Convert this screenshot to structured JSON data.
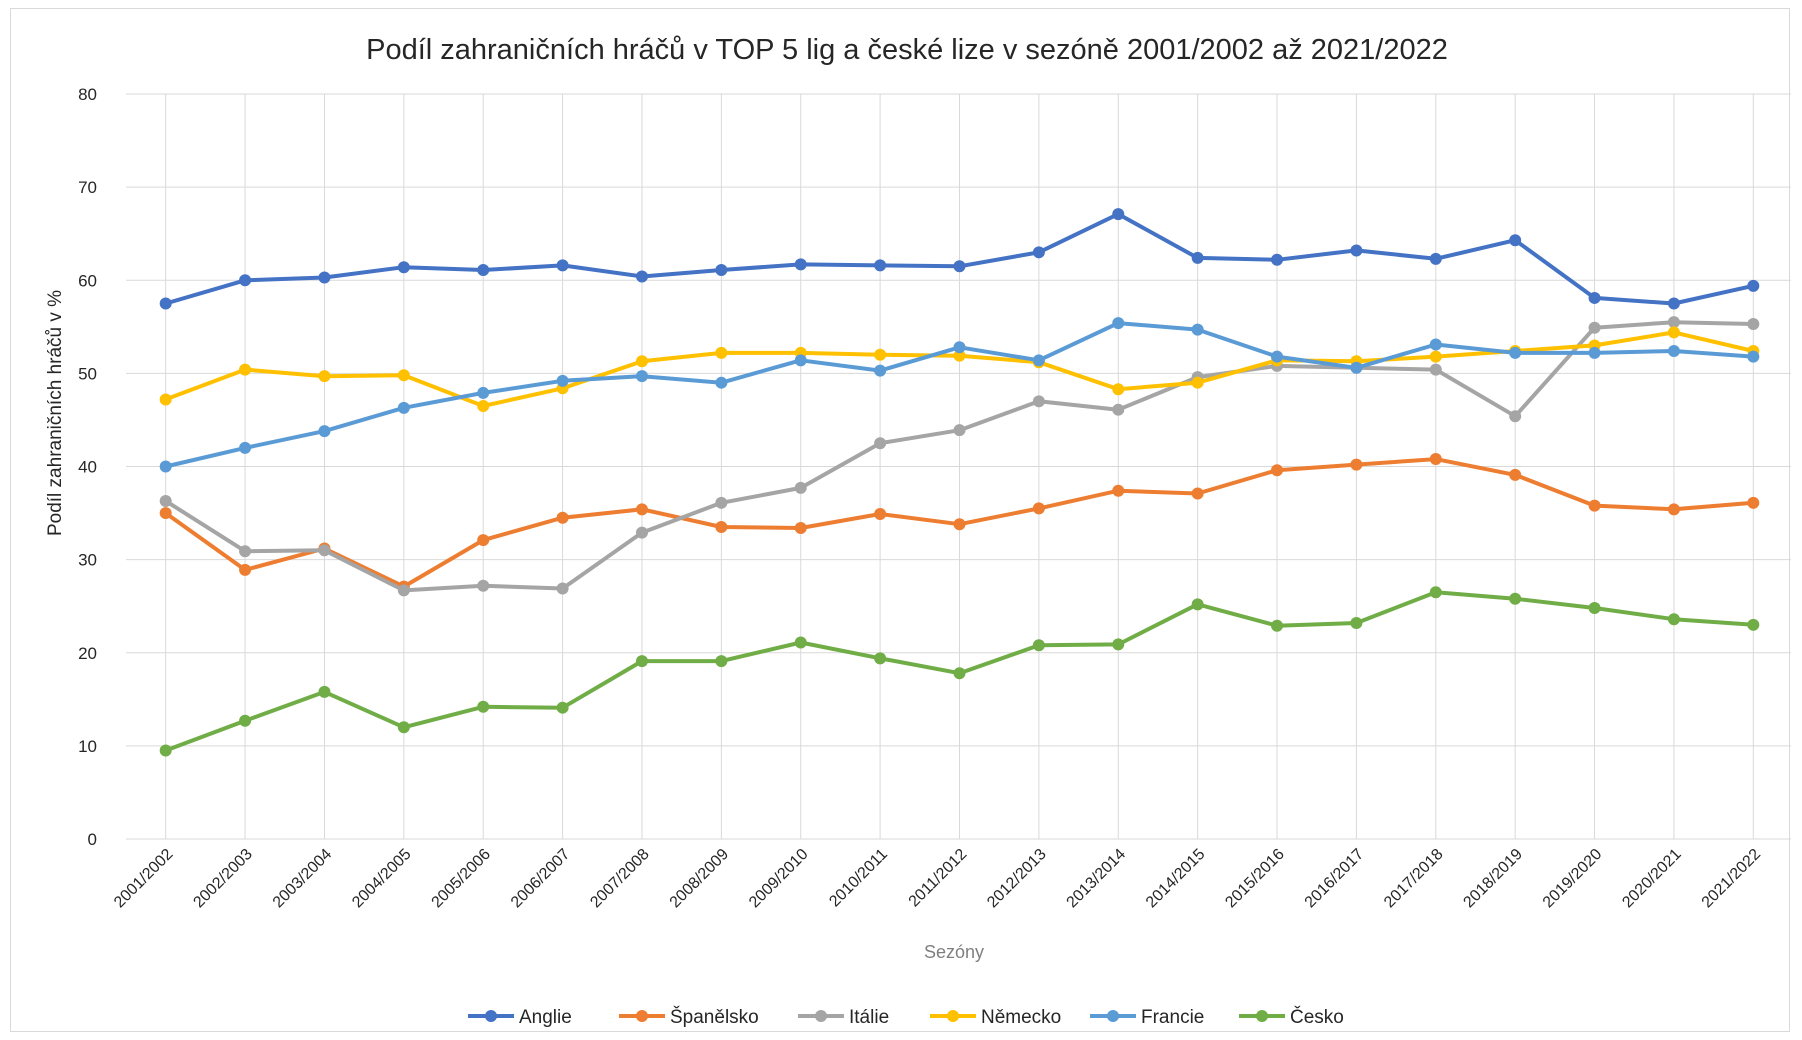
{
  "chart_data": {
    "type": "line",
    "title": "Podíl zahraničních hráčů v TOP 5 lig a české lize v sezóně 2001/2002 až 2021/2022",
    "xlabel": "Sezóny",
    "ylabel": "Podíl zahraničních hráčů v %",
    "ylim": [
      0,
      80
    ],
    "yticks": [
      "0",
      "10",
      "20",
      "30",
      "40",
      "50",
      "60",
      "70",
      "80"
    ],
    "grid": "vertical and horizontal",
    "legend_position": "bottom",
    "categories": [
      "2001/2002",
      "2002/2003",
      "2003/2004",
      "2004/2005",
      "2005/2006",
      "2006/2007",
      "2007/2008",
      "2008/2009",
      "2009/2010",
      "2010/2011",
      "2011/2012",
      "2012/2013",
      "2013/2014",
      "2014/2015",
      "2015/2016",
      "2016/2017",
      "2017/2018",
      "2018/2019",
      "2019/2020",
      "2020/2021",
      "2021/2022"
    ],
    "series": [
      {
        "name": "Anglie",
        "color": "#4472c4",
        "values": [
          57.5,
          60.0,
          60.3,
          61.4,
          61.1,
          61.6,
          60.4,
          61.1,
          61.7,
          61.6,
          61.5,
          63.0,
          67.1,
          62.4,
          62.2,
          63.2,
          62.3,
          64.3,
          58.1,
          57.5,
          59.4
        ]
      },
      {
        "name": "Španělsko",
        "color": "#ed7d31",
        "values": [
          35.0,
          28.9,
          31.2,
          27.1,
          32.1,
          34.5,
          35.4,
          33.5,
          33.4,
          34.9,
          33.8,
          35.5,
          37.4,
          37.1,
          39.6,
          40.2,
          40.8,
          39.1,
          35.8,
          35.4,
          36.1
        ]
      },
      {
        "name": "Itálie",
        "color": "#a5a5a5",
        "values": [
          36.3,
          30.9,
          31.0,
          26.7,
          27.2,
          26.9,
          32.9,
          36.1,
          37.7,
          42.5,
          43.9,
          47.0,
          46.1,
          49.6,
          50.8,
          50.6,
          50.4,
          45.4,
          54.9,
          55.5,
          55.3
        ]
      },
      {
        "name": "Německo",
        "color": "#ffc000",
        "values": [
          47.2,
          50.4,
          49.7,
          49.8,
          46.5,
          48.4,
          51.3,
          52.2,
          52.2,
          52.0,
          51.9,
          51.2,
          48.3,
          49.0,
          51.4,
          51.3,
          51.8,
          52.4,
          53.0,
          54.4,
          52.4
        ]
      },
      {
        "name": "Francie",
        "color": "#5b9bd5",
        "values": [
          40.0,
          42.0,
          43.8,
          46.3,
          47.9,
          49.2,
          49.7,
          49.0,
          51.4,
          50.3,
          52.8,
          51.4,
          55.4,
          54.7,
          51.8,
          50.6,
          53.1,
          52.2,
          52.2,
          52.4,
          51.8
        ]
      },
      {
        "name": "Česko",
        "color": "#70ad47",
        "values": [
          9.5,
          12.7,
          15.8,
          12.0,
          14.2,
          14.1,
          19.1,
          19.1,
          21.1,
          19.4,
          17.8,
          20.8,
          20.9,
          25.2,
          22.9,
          23.2,
          26.5,
          25.8,
          24.8,
          23.6,
          23.0
        ]
      }
    ]
  }
}
